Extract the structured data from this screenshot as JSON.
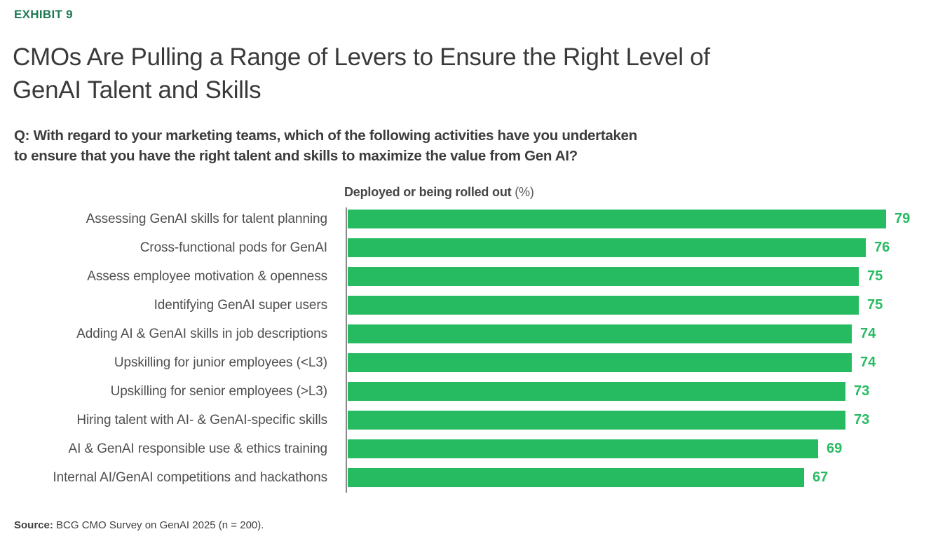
{
  "exhibit_label": "EXHIBIT 9",
  "title": "CMOs Are Pulling a Range of Levers to Ensure the Right Level of GenAI Talent and Skills",
  "title_lines": [
    "CMOs Are Pulling a Range of Levers to Ensure the Right Level of",
    "GenAI Talent and Skills"
  ],
  "question_lines": [
    "Q: With regard to your marketing teams, which of the following activities have you undertaken",
    "to ensure that you have the right talent and skills to maximize the value from Gen AI?"
  ],
  "chart_data": {
    "type": "bar",
    "orientation": "horizontal",
    "title": "Deployed or being rolled out",
    "title_unit": " (%)",
    "categories": [
      "Assessing GenAI skills for talent planning",
      "Cross-functional pods for GenAI",
      "Assess employee motivation & openness",
      "Identifying GenAI super users",
      "Adding AI & GenAI skills in job descriptions",
      "Upskilling for junior employees (<L3)",
      "Upskilling for senior employees (>L3)",
      "Hiring talent with AI- & GenAI-specific skills",
      "AI & GenAI responsible use & ethics training",
      "Internal AI/GenAI competitions and hackathons"
    ],
    "values": [
      79,
      76,
      75,
      75,
      74,
      74,
      73,
      73,
      69,
      67
    ],
    "xlim": [
      0,
      79
    ],
    "grid": false,
    "legend_position": "none",
    "value_labels": "end-of-bar",
    "bar_color": "#27BB61",
    "value_label_color": "#27BB61"
  },
  "source_label": "Source:",
  "source_text": " BCG CMO Survey on GenAI 2025 (n = 200).",
  "colors": {
    "exhibit_green": "#1E7A53",
    "bar_green": "#27BB61",
    "title_gray": "#3A3A3A",
    "label_gray": "#4F4F4F",
    "axis_gray": "#8A8A8A"
  }
}
